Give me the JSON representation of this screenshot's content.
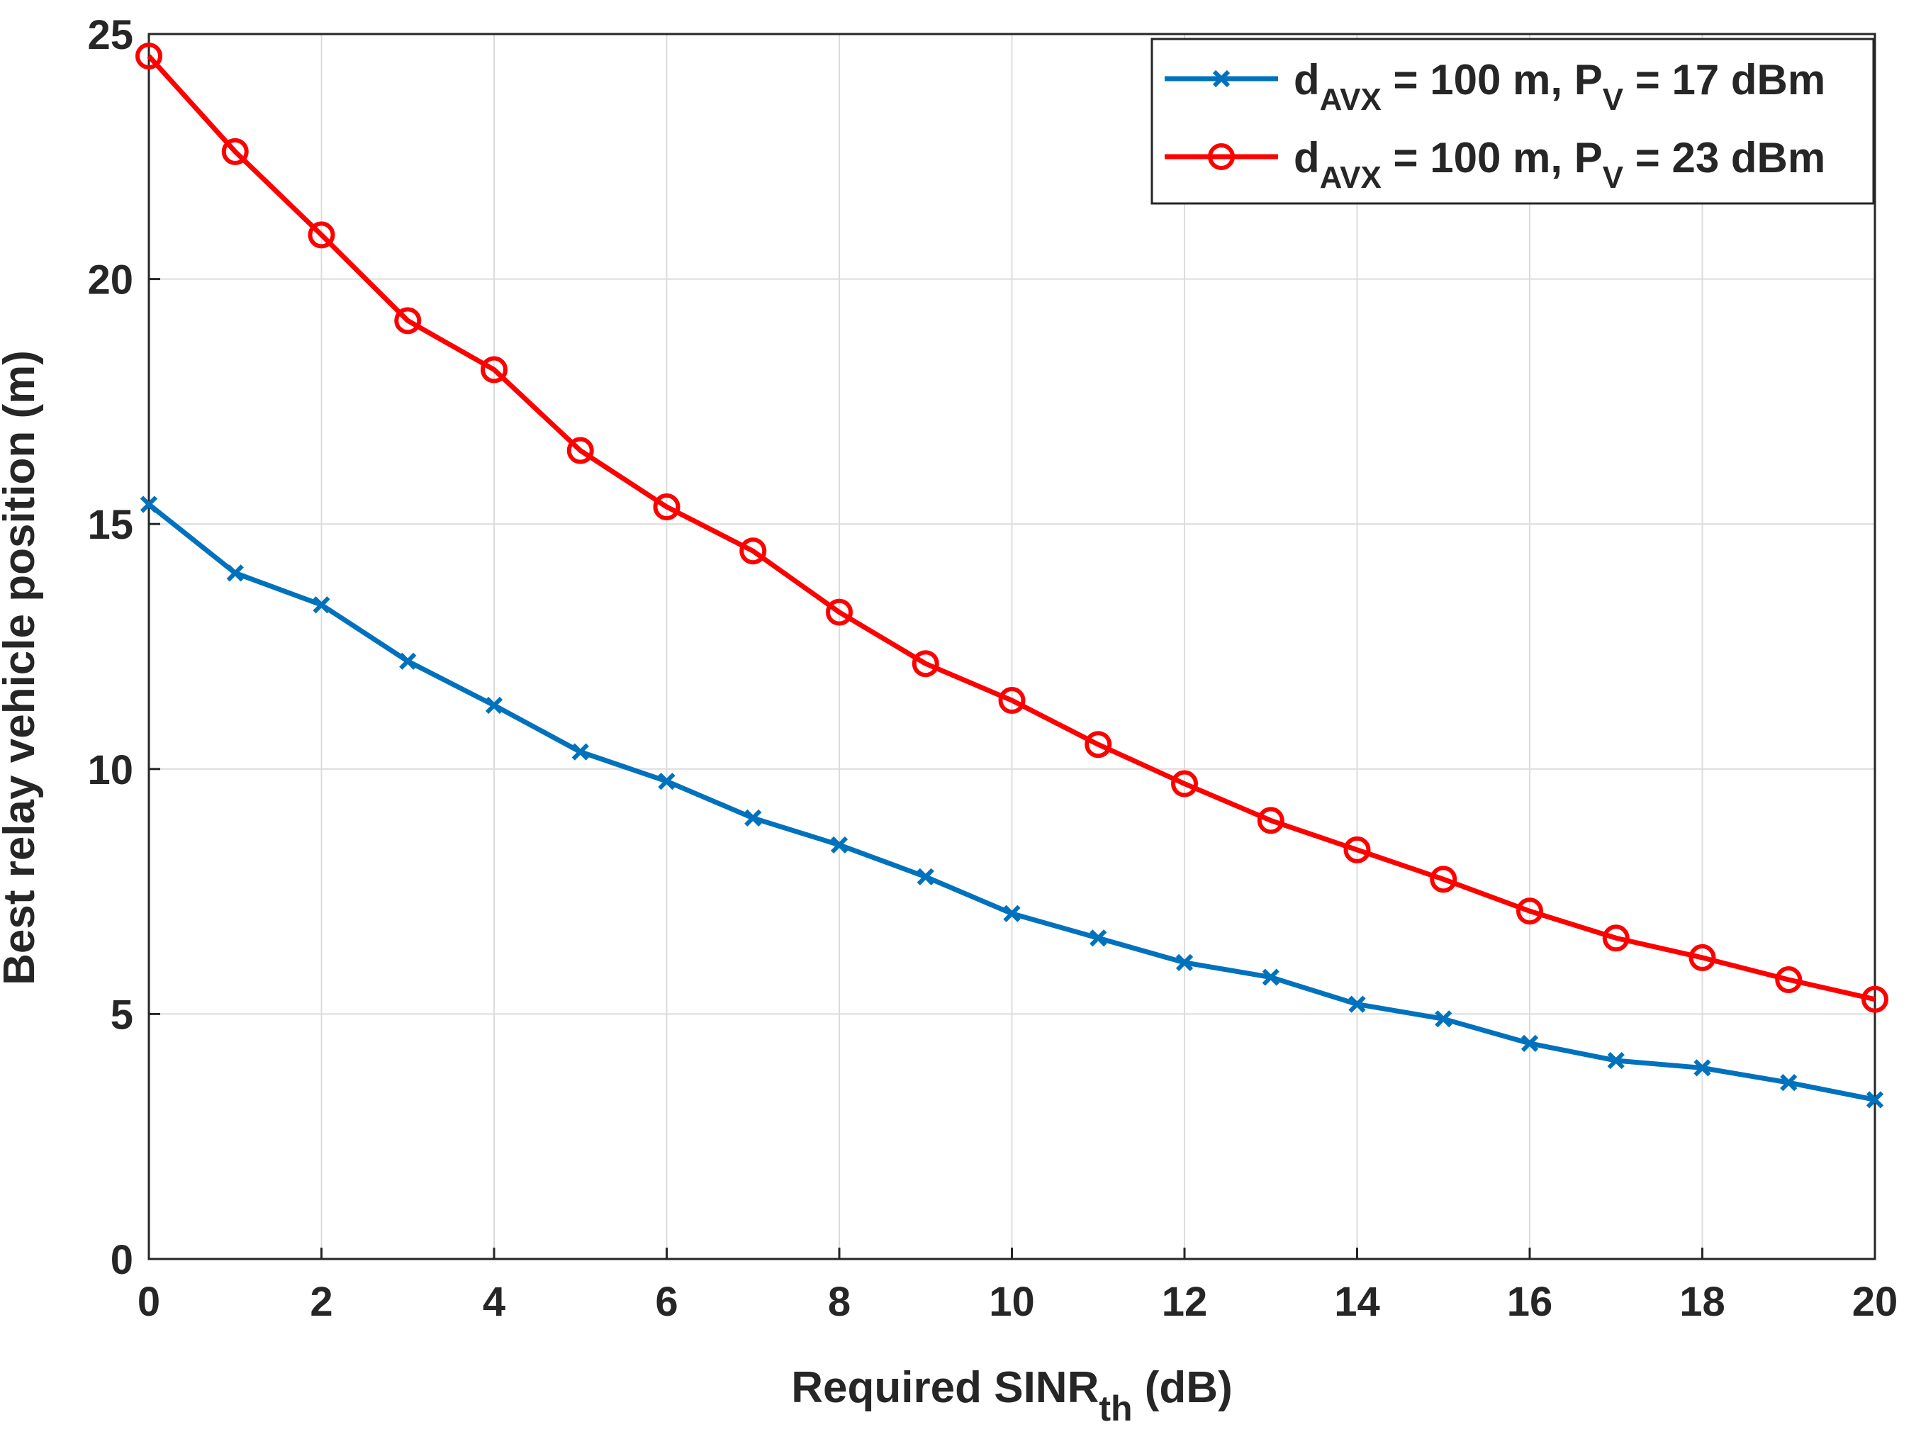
{
  "chart_data": {
    "type": "line",
    "title": "",
    "xlabel": {
      "main": "Required SINR",
      "sub": "th",
      "suffix": " (dB)"
    },
    "ylabel": "Best relay vehicle position  (m)",
    "xlim": [
      0,
      20
    ],
    "ylim": [
      0,
      25
    ],
    "xticks": [
      "0",
      "2",
      "4",
      "6",
      "8",
      "10",
      "12",
      "14",
      "16",
      "18",
      "20"
    ],
    "yticks": [
      "0",
      "5",
      "10",
      "15",
      "20",
      "25"
    ],
    "grid": true,
    "legend_position": "top-right",
    "x": [
      0,
      1,
      2,
      3,
      4,
      5,
      6,
      7,
      8,
      9,
      10,
      11,
      12,
      13,
      14,
      15,
      16,
      17,
      18,
      19,
      20
    ],
    "series": [
      {
        "name": "d_AVX = 100 m, P_V = 17 dBm",
        "legend": {
          "d": "d",
          "dsub": "AVX",
          "mid": " = 100 m, P",
          "psub": "V",
          "end": " = 17 dBm"
        },
        "color": "#0072BD",
        "marker": "x",
        "values": [
          15.4,
          14.0,
          13.35,
          12.2,
          11.3,
          10.35,
          9.75,
          9.0,
          8.45,
          7.8,
          7.05,
          6.55,
          6.05,
          5.75,
          5.2,
          4.9,
          4.4,
          4.05,
          3.9,
          3.6,
          3.25
        ]
      },
      {
        "name": "d_AVX = 100 m, P_V = 23 dBm",
        "legend": {
          "d": "d",
          "dsub": "AVX",
          "mid": " = 100 m, P",
          "psub": "V",
          "end": " = 23 dBm"
        },
        "color": "#FF0000",
        "marker": "o",
        "values": [
          24.55,
          22.6,
          20.9,
          19.15,
          18.15,
          16.5,
          15.35,
          14.45,
          13.2,
          12.15,
          11.4,
          10.5,
          9.7,
          8.95,
          8.35,
          7.75,
          7.1,
          6.55,
          6.15,
          5.7,
          5.3
        ]
      }
    ]
  }
}
